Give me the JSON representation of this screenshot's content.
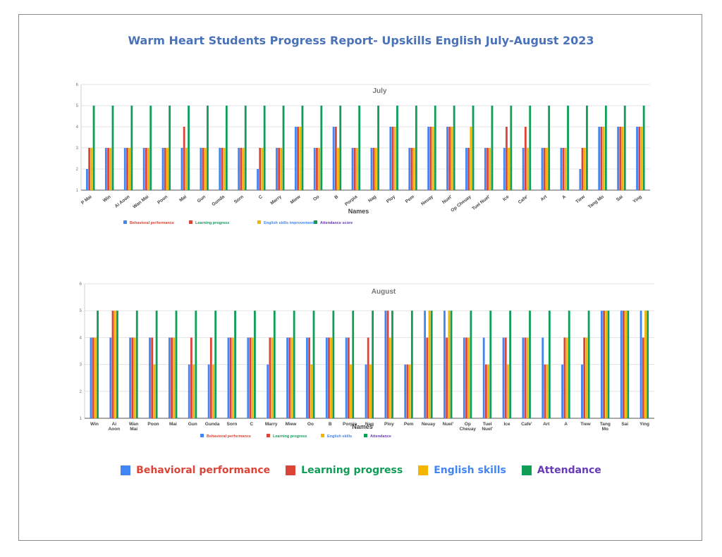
{
  "report": {
    "title": "Warm Heart Students Progress Report- Upskills English July-August 2023"
  },
  "colors": {
    "behavioral": "#4285f4",
    "learning": "#db4437",
    "english": "#f4b400",
    "attendance": "#0f9d58"
  },
  "bottom_legend": [
    {
      "label": "Behavioral performance",
      "swatch": "#4285f4",
      "text_color": "#db4437"
    },
    {
      "label": "Learning progress",
      "swatch": "#db4437",
      "text_color": "#0f9d58"
    },
    {
      "label": "English skills",
      "swatch": "#f4b400",
      "text_color": "#4285f4"
    },
    {
      "label": "Attendance",
      "swatch": "#0f9d58",
      "text_color": "#673ab7"
    }
  ],
  "chart_data": [
    {
      "type": "bar",
      "title": "July",
      "xlabel": "Names",
      "ylabel": "",
      "ylim": [
        1,
        6
      ],
      "yticks": [
        "1",
        "2",
        "3",
        "4",
        "5",
        "6"
      ],
      "grid": true,
      "legend_position": "bottom",
      "categories": [
        "P Mai",
        "Win",
        "Ai Aoon",
        "Wan Mai",
        "Poon",
        "Mai",
        "Gun",
        "Gunda",
        "Sorn",
        "C",
        "Marry",
        "Miew",
        "Oo",
        "B",
        "Porpia",
        "Nag",
        "Ploy",
        "Pem",
        "Neuay",
        "Nuel'",
        "Op Cheuay",
        "Tuel Nuel'",
        "Ice",
        "Cafe'",
        "Art",
        "A",
        "Tiew",
        "Tang Mo",
        "Sai",
        "Ying"
      ],
      "series": [
        {
          "name": "Behavioral performance",
          "color": "#4285f4",
          "legend_text_color": "#db4437",
          "values": [
            2,
            3,
            3,
            3,
            3,
            3,
            3,
            3,
            3,
            2,
            3,
            4,
            3,
            4,
            3,
            3,
            4,
            3,
            4,
            4,
            3,
            3,
            3,
            3,
            3,
            3,
            2,
            4,
            4,
            4
          ]
        },
        {
          "name": "Learning progress",
          "color": "#db4437",
          "legend_text_color": "#0f9d58",
          "values": [
            3,
            3,
            3,
            3,
            3,
            4,
            3,
            3,
            3,
            3,
            3,
            4,
            3,
            4,
            3,
            3,
            4,
            3,
            4,
            4,
            3,
            3,
            4,
            4,
            3,
            3,
            3,
            4,
            4,
            4
          ]
        },
        {
          "name": "English skills improvement",
          "color": "#f4b400",
          "legend_text_color": "#4285f4",
          "values": [
            3,
            3,
            3,
            3,
            3,
            3,
            3,
            3,
            3,
            3,
            3,
            4,
            3,
            3,
            3,
            3,
            4,
            3,
            4,
            4,
            4,
            3,
            3,
            3,
            3,
            3,
            3,
            4,
            4,
            4
          ]
        },
        {
          "name": "Attendance score",
          "color": "#0f9d58",
          "legend_text_color": "#673ab7",
          "values": [
            5,
            5,
            5,
            5,
            5,
            5,
            5,
            5,
            5,
            5,
            5,
            5,
            5,
            5,
            5,
            5,
            5,
            5,
            5,
            5,
            5,
            5,
            5,
            5,
            5,
            5,
            5,
            5,
            5,
            5
          ]
        }
      ]
    },
    {
      "type": "bar",
      "title": "August",
      "xlabel": "Names",
      "ylabel": "",
      "ylim": [
        1,
        6
      ],
      "yticks": [
        "1",
        "2",
        "3",
        "4",
        "5",
        "6"
      ],
      "grid": true,
      "legend_position": "bottom",
      "categories": [
        "Win",
        "Ai Aoon",
        "Wan Mai",
        "Poon",
        "Mai",
        "Gun",
        "Gunda",
        "Sorn",
        "C",
        "Marry",
        "Miew",
        "Oo",
        "B",
        "Porpia",
        "Nag",
        "Ploy",
        "Pem",
        "Neuay",
        "Nuel'",
        "Op Cheuay",
        "Tuel Nuel'",
        "Ice",
        "Cafe'",
        "Art",
        "A",
        "Tiew",
        "Tang Mo",
        "Sai",
        "Ying"
      ],
      "series": [
        {
          "name": "Behavioral performance",
          "color": "#4285f4",
          "legend_text_color": "#db4437",
          "values": [
            4,
            4,
            4,
            4,
            4,
            3,
            3,
            4,
            4,
            3,
            4,
            4,
            4,
            4,
            3,
            5,
            3,
            5,
            5,
            4,
            4,
            4,
            4,
            4,
            3,
            3,
            5,
            5,
            5
          ]
        },
        {
          "name": "Learning progress",
          "color": "#db4437",
          "legend_text_color": "#0f9d58",
          "values": [
            4,
            5,
            4,
            4,
            4,
            4,
            4,
            4,
            4,
            4,
            4,
            4,
            4,
            4,
            4,
            5,
            3,
            4,
            4,
            4,
            3,
            4,
            4,
            3,
            4,
            4,
            5,
            5,
            4
          ]
        },
        {
          "name": "English skills",
          "color": "#f4b400",
          "legend_text_color": "#4285f4",
          "values": [
            4,
            5,
            4,
            3,
            4,
            3,
            3,
            4,
            4,
            4,
            4,
            3,
            4,
            3,
            3,
            4,
            3,
            5,
            5,
            4,
            3,
            3,
            4,
            3,
            4,
            4,
            5,
            5,
            5
          ]
        },
        {
          "name": "Attendance",
          "color": "#0f9d58",
          "legend_text_color": "#673ab7",
          "values": [
            5,
            5,
            5,
            5,
            5,
            5,
            5,
            5,
            5,
            5,
            5,
            5,
            5,
            5,
            5,
            5,
            5,
            5,
            5,
            5,
            5,
            5,
            5,
            5,
            5,
            5,
            5,
            5,
            5
          ]
        }
      ]
    }
  ]
}
